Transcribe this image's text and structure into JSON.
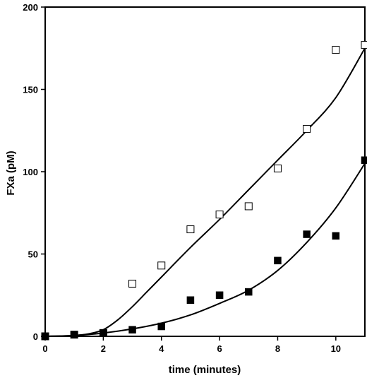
{
  "chart_data": {
    "type": "scatter",
    "xlabel": "time (minutes)",
    "ylabel": "FXa (pM)",
    "xlim": [
      0,
      11
    ],
    "ylim": [
      0,
      200
    ],
    "x_ticks": [
      0,
      2,
      4,
      6,
      8,
      10
    ],
    "y_ticks": [
      0,
      50,
      100,
      150,
      200
    ],
    "grid": false,
    "legend": "none",
    "series": [
      {
        "marker": "open-square",
        "x": [
          0,
          1,
          2,
          3,
          4,
          5,
          6,
          7,
          8,
          9,
          10,
          11
        ],
        "y": [
          0,
          1,
          2,
          32,
          43,
          65,
          74,
          79,
          102,
          126,
          174,
          177
        ],
        "fit": {
          "x": [
            0,
            1,
            1.5,
            2,
            2.5,
            3,
            3.5,
            4,
            5,
            6,
            7,
            8,
            9,
            10,
            11
          ],
          "y": [
            0,
            0.5,
            1.5,
            4,
            10,
            18,
            27,
            36,
            54,
            71,
            89,
            107,
            125,
            145,
            175
          ]
        }
      },
      {
        "marker": "filled-square",
        "x": [
          0,
          1,
          2,
          3,
          4,
          5,
          6,
          7,
          8,
          9,
          10,
          11
        ],
        "y": [
          0,
          1,
          2,
          4,
          6,
          22,
          25,
          27,
          46,
          62,
          61,
          107
        ],
        "fit": {
          "x": [
            0,
            1,
            2,
            3,
            4,
            5,
            6,
            7,
            8,
            9,
            10,
            11
          ],
          "y": [
            0,
            0.5,
            2,
            4.5,
            8,
            13,
            20,
            28,
            40,
            57,
            78,
            105
          ]
        }
      }
    ]
  }
}
